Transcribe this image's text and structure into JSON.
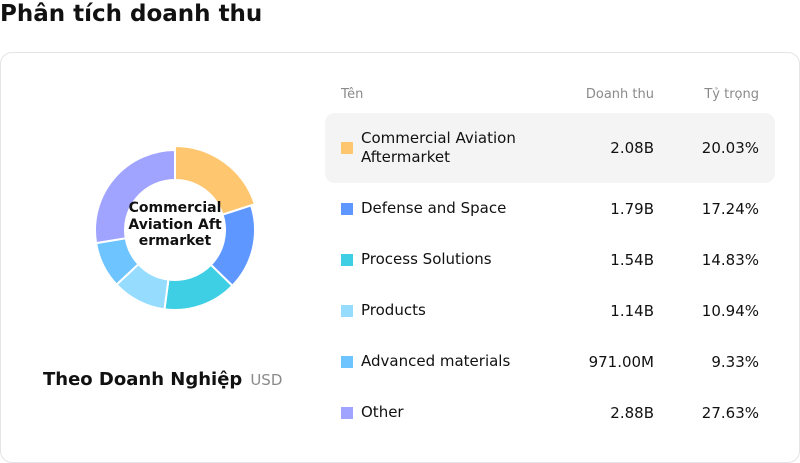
{
  "page": {
    "title": "Phân tích doanh thu"
  },
  "chart_card": {
    "center_label": "Commercial Aviation Aftermarket",
    "caption_title": "Theo Doanh Nghiệp",
    "caption_unit": "USD"
  },
  "table": {
    "headers": {
      "name": "Tên",
      "revenue": "Doanh thu",
      "share": "Tỷ trọng"
    },
    "rows": [
      {
        "name": "Commercial Aviation Aftermarket",
        "revenue": "2.08B",
        "share": "20.03%",
        "color": "#FFC670",
        "highlighted": true
      },
      {
        "name": "Defense and Space",
        "revenue": "1.79B",
        "share": "17.24%",
        "color": "#5E97FF",
        "highlighted": false
      },
      {
        "name": "Process Solutions",
        "revenue": "1.54B",
        "share": "14.83%",
        "color": "#3ECFE4",
        "highlighted": false
      },
      {
        "name": "Products",
        "revenue": "1.14B",
        "share": "10.94%",
        "color": "#96DCFF",
        "highlighted": false
      },
      {
        "name": "Advanced materials",
        "revenue": "971.00M",
        "share": "9.33%",
        "color": "#6EC4FF",
        "highlighted": false
      },
      {
        "name": "Other",
        "revenue": "2.88B",
        "share": "27.63%",
        "color": "#A0A4FF",
        "highlighted": false
      }
    ]
  },
  "chart_data": {
    "type": "pie",
    "variant": "donut",
    "title": "Phân tích doanh thu",
    "subtitle": "Theo Doanh Nghiệp",
    "unit": "USD",
    "center_label": "Commercial Aviation Aftermarket",
    "categories": [
      "Commercial Aviation Aftermarket",
      "Defense and Space",
      "Process Solutions",
      "Products",
      "Advanced materials",
      "Other"
    ],
    "values": [
      2080000000,
      1790000000,
      1540000000,
      1140000000,
      971000000,
      2880000000
    ],
    "value_labels": [
      "2.08B",
      "1.79B",
      "1.54B",
      "1.14B",
      "971.00M",
      "2.88B"
    ],
    "percentages": [
      20.03,
      17.24,
      14.83,
      10.94,
      9.33,
      27.63
    ],
    "colors": [
      "#FFC670",
      "#5E97FF",
      "#3ECFE4",
      "#96DCFF",
      "#6EC4FF",
      "#A0A4FF"
    ],
    "highlighted_index": 0,
    "legend_position": "right (table)"
  }
}
